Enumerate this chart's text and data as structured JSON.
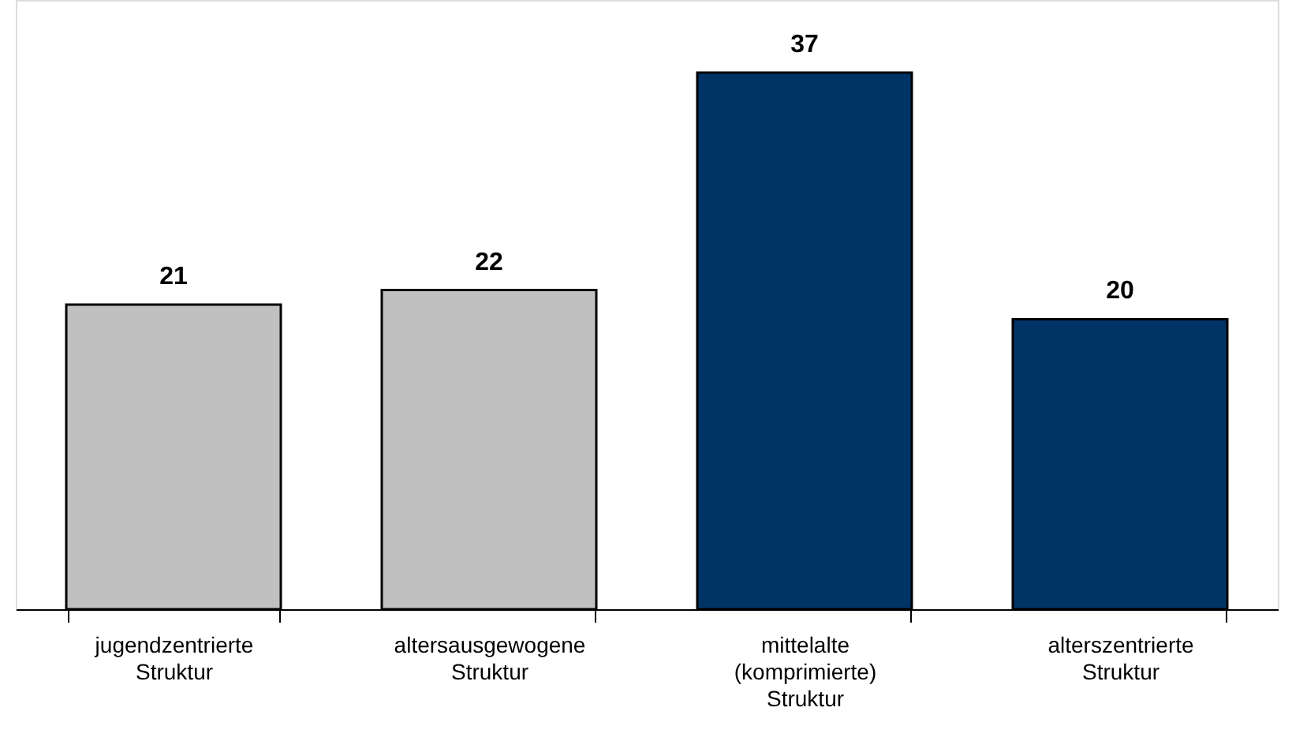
{
  "chart_data": {
    "type": "bar",
    "categories": [
      "jugendzentrierte\nStruktur",
      "altersausgewogene\nStruktur",
      "mittelalte\n(komprimierte)\nStruktur",
      "alterszentrierte\nStruktur"
    ],
    "values": [
      21,
      22,
      37,
      20
    ],
    "colors": [
      "#c0c0c0",
      "#c0c0c0",
      "#003366",
      "#003366"
    ],
    "ylim": [
      0,
      42
    ],
    "data_labels": true,
    "grid": false
  }
}
